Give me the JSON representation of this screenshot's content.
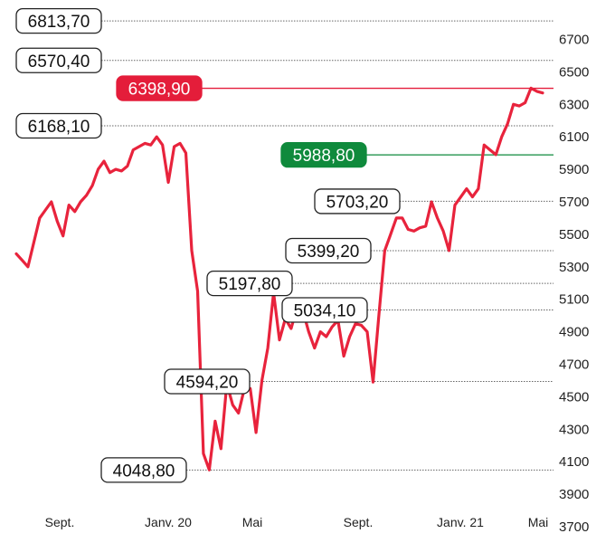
{
  "chart_data": {
    "type": "line",
    "title": "",
    "xlabel": "",
    "ylabel": "",
    "x_ticks": [
      "Sept.",
      "Janv. 20",
      "Mai",
      "Sept.",
      "Janv. 21",
      "Mai"
    ],
    "y_ticks": [
      3700,
      3900,
      4100,
      4300,
      4500,
      4700,
      4900,
      5100,
      5300,
      5500,
      5700,
      5900,
      6100,
      6300,
      6500,
      6700
    ],
    "ylim": [
      3700,
      6800
    ],
    "series": [
      {
        "color": "#e8233c",
        "values": [
          5380,
          5340,
          5300,
          5450,
          5600,
          5650,
          5700,
          5580,
          5490,
          5680,
          5640,
          5700,
          5740,
          5800,
          5900,
          5950,
          5880,
          5900,
          5890,
          5920,
          6020,
          6040,
          6060,
          6050,
          6100,
          6050,
          5820,
          6040,
          6060,
          6000,
          5400,
          5150,
          4150,
          4050,
          4350,
          4180,
          4580,
          4450,
          4400,
          4550,
          4550,
          4280,
          4600,
          4800,
          5140,
          4850,
          4980,
          4920,
          5050,
          5030,
          4900,
          4800,
          4900,
          4870,
          4930,
          4970,
          4750,
          4870,
          4950,
          4940,
          4900,
          4590,
          5000,
          5400,
          5500,
          5600,
          5600,
          5530,
          5520,
          5540,
          5550,
          5700,
          5600,
          5520,
          5400,
          5680,
          5730,
          5780,
          5730,
          5780,
          6050,
          6020,
          5990,
          6100,
          6180,
          6300,
          6290,
          6310,
          6400,
          6380,
          6370
        ]
      }
    ],
    "reference_lines": [
      {
        "label": "6813,70",
        "value": 6813.7
      },
      {
        "label": "6570,40",
        "value": 6570.4
      },
      {
        "label": "6398,90",
        "value": 6398.9
      },
      {
        "label": "6168,10",
        "value": 6168.1
      },
      {
        "label": "5988,80",
        "value": 5988.8
      },
      {
        "label": "5703,20",
        "value": 5703.2
      },
      {
        "label": "5399,20",
        "value": 5399.2
      },
      {
        "label": "5197,80",
        "value": 5197.8
      },
      {
        "label": "5034,10",
        "value": 5034.1
      },
      {
        "label": "4594,20",
        "value": 4594.2
      },
      {
        "label": "4048,80",
        "value": 4048.8
      }
    ],
    "colors": {
      "line": "#e8233c",
      "highlight_red": "#e41d3a",
      "highlight_green": "#0f8a3c",
      "gridline": "#666666"
    }
  }
}
